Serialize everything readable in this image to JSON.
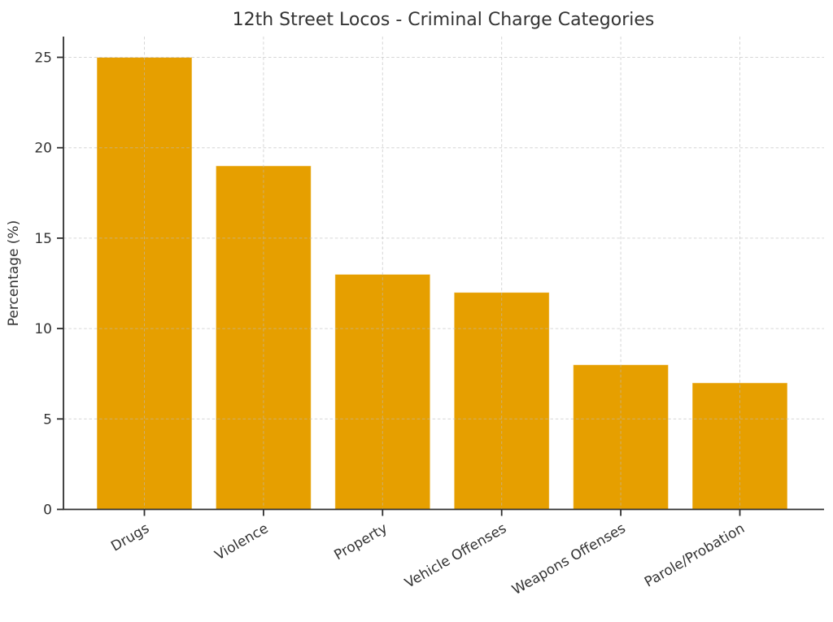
{
  "chart_data": {
    "type": "bar",
    "title": "12th Street Locos - Criminal Charge Categories",
    "ylabel": "Percentage (%)",
    "xlabel": "",
    "categories": [
      "Drugs",
      "Violence",
      "Property",
      "Vehicle Offenses",
      "Weapons Offenses",
      "Parole/Probation"
    ],
    "values": [
      25,
      19,
      13,
      12,
      8,
      7
    ],
    "ylim": [
      0,
      26.25
    ],
    "yticks": [
      0,
      5,
      10,
      15,
      20,
      25
    ],
    "bar_color": "#E69F00",
    "bar_edge_color": "rgba(255,255,255,0.55)",
    "grid_color": "#bbbbbb",
    "grid_style": "dashed",
    "grid_above_bars": true,
    "spine_color": "#2f2f2f",
    "text_color": "#333333",
    "legend_position": "none",
    "x_label_rotation_deg": 30
  }
}
